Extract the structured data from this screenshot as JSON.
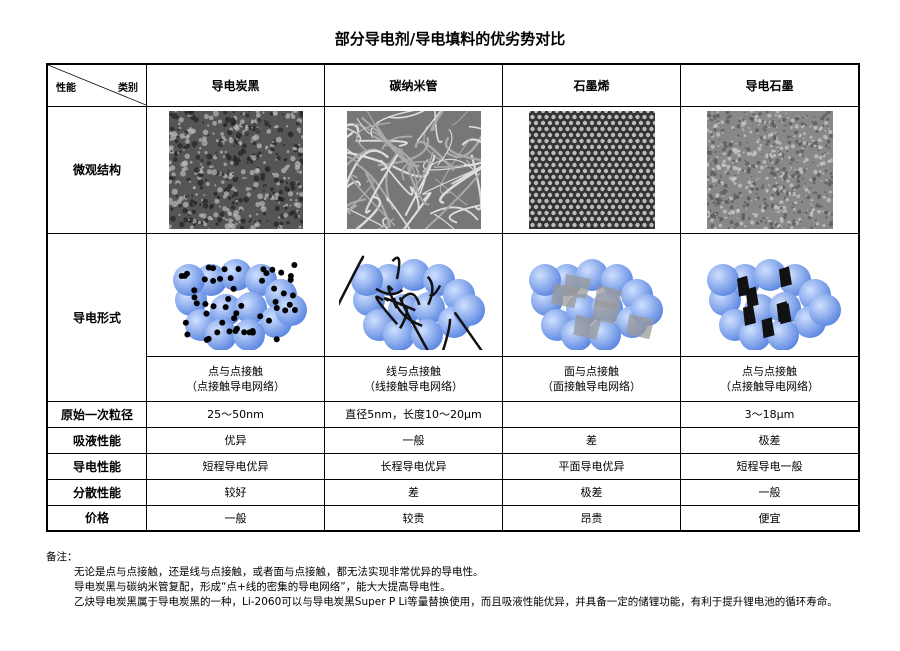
{
  "title": "部分导电剂/导电填料的优劣势对比",
  "corner": {
    "left": "性能",
    "right": "类别"
  },
  "columns": [
    "导电炭黑",
    "碳纳米管",
    "石墨烯",
    "导电石墨"
  ],
  "rows": {
    "micro": "微观结构",
    "form": "导电形式",
    "form_captions": [
      [
        "点与点接触",
        "（点接触导电网络）"
      ],
      [
        "线与点接触",
        "（线接触导电网络）"
      ],
      [
        "面与点接触",
        "（面接触导电网络）"
      ],
      [
        "点与点接触",
        "（点接触导电网络）"
      ]
    ],
    "data": [
      {
        "label": "原始一次粒径",
        "values": [
          "25～50nm",
          "直径5nm，长度10～20μm",
          "",
          "3～18μm"
        ]
      },
      {
        "label": "吸液性能",
        "values": [
          "优异",
          "一般",
          "差",
          "极差"
        ]
      },
      {
        "label": "导电性能",
        "values": [
          "短程导电优异",
          "长程导电优异",
          "平面导电优异",
          "短程导电一般"
        ]
      },
      {
        "label": "分散性能",
        "values": [
          "较好",
          "差",
          "极差",
          "一般"
        ]
      },
      {
        "label": "价格",
        "values": [
          "一般",
          "较贵",
          "昂贵",
          "便宜"
        ]
      }
    ]
  },
  "notes": {
    "label": "备注：",
    "lines": [
      "无论是点与点接触，还是线与点接触，或者面与点接触，都无法实现非常优异的导电性。",
      "导电炭黑与碳纳米管复配，形成“点+线的密集的导电网络”，能大大提高导电性。",
      "乙炔导电炭黑属于导电炭黑的一种，Li-2060可以与导电炭黑Super P Li等量替换使用，而且吸液性能优异，并具备一定的储锂功能，有利于提升锂电池的循环寿命。"
    ]
  },
  "colors": {
    "sphere": "#5b86e0",
    "border": "#000000"
  }
}
